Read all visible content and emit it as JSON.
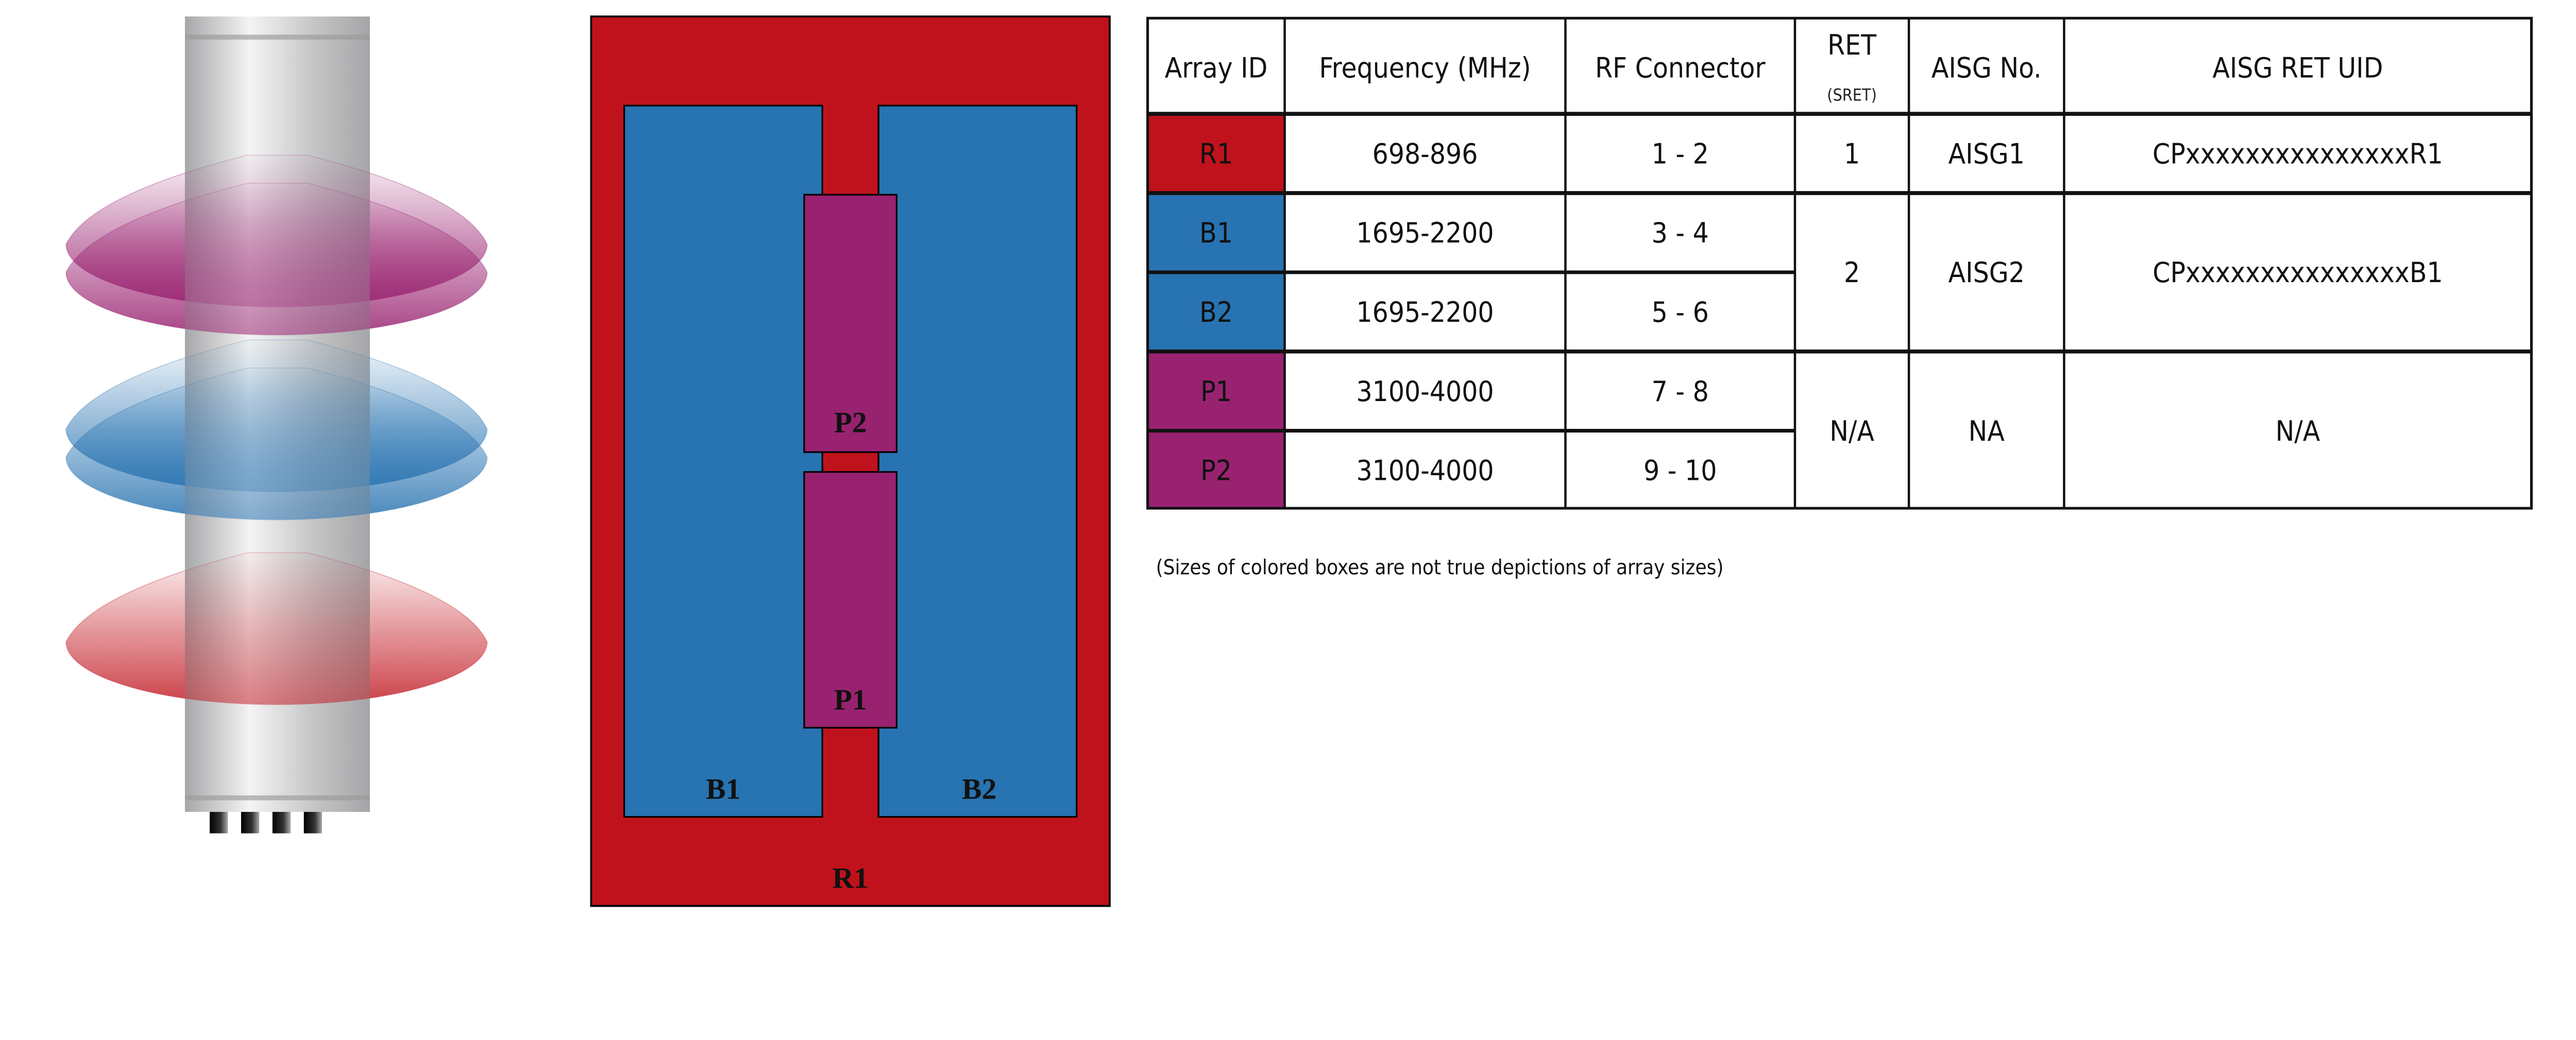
{
  "colors": {
    "red": "#c0121c",
    "blue": "#2873b1",
    "purple": "#992270"
  },
  "diagram": {
    "labels": {
      "r1": "R1",
      "b1": "B1",
      "b2": "B2",
      "p1": "P1",
      "p2": "P2"
    }
  },
  "table": {
    "headers": {
      "array_id": "Array ID",
      "frequency": "Frequency (MHz)",
      "rf_connector": "RF Connector",
      "ret": "RET",
      "ret_sub": "(SRET)",
      "aisg_no": "AISG No.",
      "aisg_ret_uid": "AISG RET UID"
    },
    "rows": [
      {
        "array_id": "R1",
        "frequency": "698-896",
        "rf_connector": "1 - 2"
      },
      {
        "array_id": "B1",
        "frequency": "1695-2200",
        "rf_connector": "3 - 4"
      },
      {
        "array_id": "B2",
        "frequency": "1695-2200",
        "rf_connector": "5 - 6"
      },
      {
        "array_id": "P1",
        "frequency": "3100-4000",
        "rf_connector": "7 - 8"
      },
      {
        "array_id": "P2",
        "frequency": "3100-4000",
        "rf_connector": "9 - 10"
      }
    ],
    "ret_groups": [
      {
        "ret": "1",
        "aisg_no": "AISG1",
        "uid": "CPxxxxxxxxxxxxxxxR1"
      },
      {
        "ret": "2",
        "aisg_no": "AISG2",
        "uid": "CPxxxxxxxxxxxxxxxB1"
      },
      {
        "ret": "N/A",
        "aisg_no": "NA",
        "uid": "N/A"
      }
    ]
  },
  "note": "(Sizes of colored boxes are not true depictions of array sizes)"
}
